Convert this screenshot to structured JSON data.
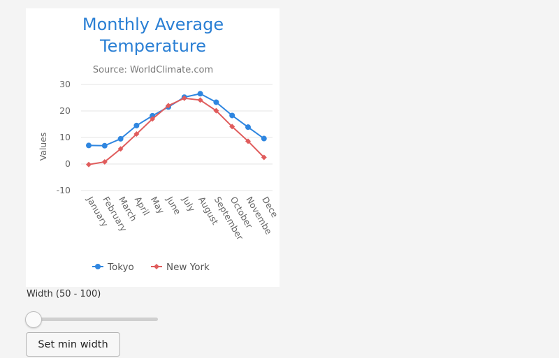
{
  "chart_data": {
    "type": "line",
    "title": [
      "Monthly Average",
      "Temperature"
    ],
    "subtitle": "Source: WorldClimate.com",
    "ylabel": "Values",
    "xlabel": "",
    "ylim": [
      -10,
      30
    ],
    "yticks": [
      30,
      20,
      10,
      0,
      -10
    ],
    "categories": [
      "January",
      "February",
      "March",
      "April",
      "May",
      "June",
      "July",
      "August",
      "September",
      "October",
      "November",
      "December"
    ],
    "category_labels_visible": [
      "January",
      "February",
      "March",
      "April",
      "May",
      "June",
      "July",
      "August",
      "September",
      "October",
      "Novembe",
      "Dece"
    ],
    "grid": true,
    "legend_position": "bottom-center",
    "series": [
      {
        "name": "Tokyo",
        "color": "#2f86e0",
        "marker": "circle",
        "values": [
          7.0,
          6.9,
          9.5,
          14.5,
          18.2,
          21.5,
          25.2,
          26.5,
          23.3,
          18.3,
          13.9,
          9.6
        ]
      },
      {
        "name": "New York",
        "color": "#e05c5c",
        "marker": "diamond",
        "values": [
          -0.2,
          0.8,
          5.7,
          11.3,
          17.0,
          22.0,
          24.8,
          24.1,
          20.1,
          14.1,
          8.6,
          2.5
        ]
      }
    ]
  },
  "controls": {
    "width_label": "Width (50 - 100)",
    "slider_value": 50,
    "slider_min": 50,
    "slider_max": 100,
    "button_label": "Set min width"
  }
}
